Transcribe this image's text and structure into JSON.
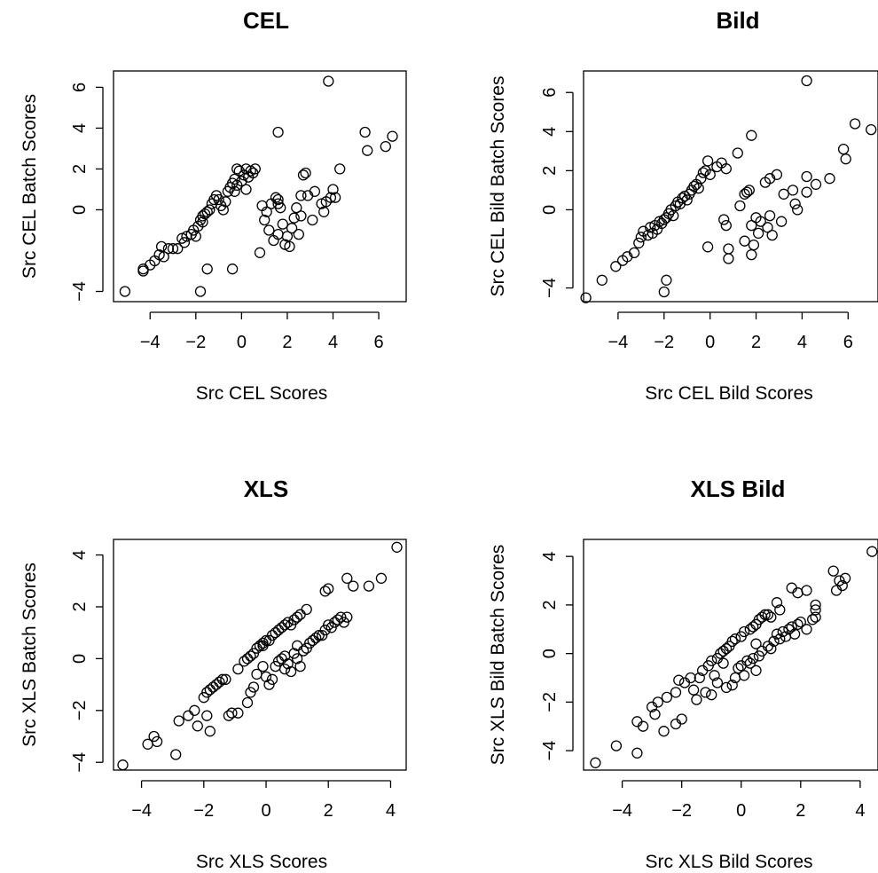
{
  "chart_data": [
    {
      "type": "scatter",
      "title": "CEL",
      "xlabel": "Src CEL Scores",
      "ylabel": "Src CEL Batch Scores",
      "xticks": [
        -4,
        -2,
        0,
        2,
        4,
        6
      ],
      "yticks": [
        -4,
        0,
        2,
        4,
        6
      ],
      "xlim": [
        -5.6,
        7.2
      ],
      "ylim": [
        -4.5,
        6.8
      ],
      "points": [
        [
          -5.1,
          -4.0
        ],
        [
          -4.3,
          -3.0
        ],
        [
          -4.3,
          -2.9
        ],
        [
          -4.0,
          -2.7
        ],
        [
          -3.8,
          -2.5
        ],
        [
          -3.6,
          -2.2
        ],
        [
          -3.5,
          -1.8
        ],
        [
          -3.4,
          -2.3
        ],
        [
          -3.2,
          -1.9
        ],
        [
          -3.0,
          -1.9
        ],
        [
          -2.8,
          -1.9
        ],
        [
          -2.6,
          -1.4
        ],
        [
          -2.5,
          -1.6
        ],
        [
          -2.4,
          -1.3
        ],
        [
          -2.2,
          -1.2
        ],
        [
          -2.1,
          -1.0
        ],
        [
          -2.0,
          -1.3
        ],
        [
          -1.9,
          -0.8
        ],
        [
          -1.8,
          -0.5
        ],
        [
          -1.7,
          -0.6
        ],
        [
          -1.7,
          -0.3
        ],
        [
          -1.6,
          -0.2
        ],
        [
          -1.5,
          -0.1
        ],
        [
          -1.4,
          0.0
        ],
        [
          -1.3,
          0.3
        ],
        [
          -1.2,
          0.5
        ],
        [
          -1.1,
          0.7
        ],
        [
          -1.0,
          0.5
        ],
        [
          -0.9,
          0.2
        ],
        [
          -0.8,
          0.0
        ],
        [
          -0.7,
          0.4
        ],
        [
          -0.6,
          0.9
        ],
        [
          -0.5,
          1.1
        ],
        [
          -0.4,
          1.3
        ],
        [
          -0.3,
          0.9
        ],
        [
          -0.3,
          1.5
        ],
        [
          -0.2,
          1.2
        ],
        [
          -0.1,
          1.9
        ],
        [
          0.0,
          1.4
        ],
        [
          0.1,
          1.7
        ],
        [
          0.2,
          2.0
        ],
        [
          0.3,
          1.6
        ],
        [
          0.4,
          1.9
        ],
        [
          0.5,
          1.8
        ],
        [
          0.6,
          2.0
        ],
        [
          0.2,
          1.0
        ],
        [
          -0.2,
          2.0
        ],
        [
          -1.8,
          -4.0
        ],
        [
          -1.5,
          -2.9
        ],
        [
          -0.4,
          -2.9
        ],
        [
          0.8,
          -2.1
        ],
        [
          0.9,
          0.2
        ],
        [
          1.0,
          -0.5
        ],
        [
          1.1,
          -0.1
        ],
        [
          1.2,
          -1.0
        ],
        [
          1.3,
          0.3
        ],
        [
          1.4,
          -1.5
        ],
        [
          1.5,
          0.6
        ],
        [
          1.6,
          0.5
        ],
        [
          1.6,
          -1.2
        ],
        [
          1.7,
          0.1
        ],
        [
          1.8,
          -0.7
        ],
        [
          1.9,
          -1.7
        ],
        [
          2.0,
          -1.3
        ],
        [
          2.1,
          -1.8
        ],
        [
          2.2,
          -0.9
        ],
        [
          2.3,
          -0.4
        ],
        [
          2.4,
          0.1
        ],
        [
          2.5,
          -1.2
        ],
        [
          2.6,
          -0.3
        ],
        [
          2.7,
          1.7
        ],
        [
          2.8,
          1.8
        ],
        [
          2.9,
          0.7
        ],
        [
          3.1,
          -0.5
        ],
        [
          3.2,
          0.9
        ],
        [
          3.5,
          0.3
        ],
        [
          3.6,
          -0.1
        ],
        [
          3.7,
          0.4
        ],
        [
          3.9,
          0.6
        ],
        [
          4.0,
          1.0
        ],
        [
          4.1,
          0.6
        ],
        [
          4.3,
          2.0
        ],
        [
          1.6,
          3.8
        ],
        [
          3.8,
          6.3
        ],
        [
          5.4,
          3.8
        ],
        [
          5.5,
          2.9
        ],
        [
          6.3,
          3.1
        ],
        [
          6.6,
          3.6
        ],
        [
          1.6,
          0.3
        ],
        [
          2.6,
          0.7
        ]
      ]
    },
    {
      "type": "scatter",
      "title": "Bild",
      "xlabel": "Src CEL Bild Scores",
      "ylabel": "Src CEL Bild Batch Scores",
      "xticks": [
        -4,
        -2,
        0,
        2,
        4,
        6
      ],
      "yticks": [
        -4,
        0,
        2,
        4,
        6
      ],
      "xlim": [
        -5.5,
        7.3
      ],
      "ylim": [
        -4.7,
        7.1
      ],
      "points": [
        [
          -5.4,
          -4.5
        ],
        [
          -4.7,
          -3.6
        ],
        [
          -4.1,
          -2.9
        ],
        [
          -3.8,
          -2.6
        ],
        [
          -3.6,
          -2.4
        ],
        [
          -3.3,
          -2.2
        ],
        [
          -3.1,
          -1.7
        ],
        [
          -3.0,
          -1.4
        ],
        [
          -2.9,
          -1.1
        ],
        [
          -2.7,
          -1.3
        ],
        [
          -2.6,
          -0.9
        ],
        [
          -2.5,
          -1.2
        ],
        [
          -2.4,
          -0.8
        ],
        [
          -2.3,
          -1.0
        ],
        [
          -2.2,
          -0.6
        ],
        [
          -2.1,
          -0.7
        ],
        [
          -2.0,
          -0.5
        ],
        [
          -1.9,
          -0.4
        ],
        [
          -1.8,
          -0.2
        ],
        [
          -1.7,
          0.0
        ],
        [
          -1.6,
          -0.3
        ],
        [
          -1.5,
          0.2
        ],
        [
          -1.4,
          0.4
        ],
        [
          -1.3,
          0.3
        ],
        [
          -1.2,
          0.6
        ],
        [
          -1.1,
          0.7
        ],
        [
          -1.0,
          0.5
        ],
        [
          -0.9,
          0.8
        ],
        [
          -0.8,
          1.0
        ],
        [
          -0.7,
          1.2
        ],
        [
          -0.6,
          1.3
        ],
        [
          -0.5,
          1.1
        ],
        [
          -0.4,
          1.6
        ],
        [
          -0.3,
          1.9
        ],
        [
          -0.2,
          2.0
        ],
        [
          -0.1,
          2.5
        ],
        [
          0.0,
          1.8
        ],
        [
          0.3,
          2.2
        ],
        [
          0.5,
          2.4
        ],
        [
          0.7,
          2.1
        ],
        [
          -0.1,
          -1.9
        ],
        [
          -2.0,
          -4.2
        ],
        [
          -1.9,
          -3.6
        ],
        [
          0.6,
          -0.5
        ],
        [
          0.7,
          -0.8
        ],
        [
          0.8,
          -2.0
        ],
        [
          0.8,
          -2.5
        ],
        [
          1.3,
          0.2
        ],
        [
          1.5,
          0.8
        ],
        [
          1.5,
          -1.6
        ],
        [
          1.6,
          0.9
        ],
        [
          1.7,
          1.0
        ],
        [
          1.8,
          -0.8
        ],
        [
          1.8,
          -2.3
        ],
        [
          1.9,
          -1.8
        ],
        [
          2.0,
          -0.4
        ],
        [
          2.1,
          -1.2
        ],
        [
          2.2,
          -0.6
        ],
        [
          2.4,
          1.4
        ],
        [
          2.5,
          -0.9
        ],
        [
          2.6,
          -0.3
        ],
        [
          2.7,
          -1.3
        ],
        [
          2.9,
          1.8
        ],
        [
          3.1,
          -0.6
        ],
        [
          3.2,
          0.8
        ],
        [
          3.6,
          1.0
        ],
        [
          3.7,
          0.3
        ],
        [
          3.8,
          0.0
        ],
        [
          4.2,
          1.7
        ],
        [
          4.2,
          0.9
        ],
        [
          4.6,
          1.3
        ],
        [
          5.2,
          1.6
        ],
        [
          5.8,
          3.1
        ],
        [
          5.9,
          2.6
        ],
        [
          6.3,
          4.4
        ],
        [
          7.0,
          4.1
        ],
        [
          4.2,
          6.6
        ],
        [
          1.8,
          3.8
        ],
        [
          1.2,
          2.9
        ],
        [
          2.6,
          1.6
        ]
      ]
    },
    {
      "type": "scatter",
      "title": "XLS",
      "xlabel": "Src XLS Scores",
      "ylabel": "Src XLS Batch Scores",
      "xticks": [
        -4,
        -2,
        0,
        2,
        4
      ],
      "yticks": [
        -4,
        -2,
        0,
        2,
        4
      ],
      "xlim": [
        -4.9,
        4.5
      ],
      "ylim": [
        -4.3,
        4.6
      ],
      "points": [
        [
          -4.6,
          -4.1
        ],
        [
          -3.8,
          -3.3
        ],
        [
          -3.6,
          -3.0
        ],
        [
          -3.5,
          -3.2
        ],
        [
          -2.9,
          -3.7
        ],
        [
          -2.8,
          -2.4
        ],
        [
          -2.5,
          -2.2
        ],
        [
          -2.3,
          -2.0
        ],
        [
          -2.2,
          -2.6
        ],
        [
          -1.9,
          -2.2
        ],
        [
          -2.0,
          -1.5
        ],
        [
          -1.9,
          -1.3
        ],
        [
          -1.8,
          -1.2
        ],
        [
          -1.7,
          -1.1
        ],
        [
          -1.6,
          -1.0
        ],
        [
          -1.5,
          -0.9
        ],
        [
          -1.4,
          -0.8
        ],
        [
          -1.3,
          -0.8
        ],
        [
          -0.9,
          -0.4
        ],
        [
          -0.7,
          -0.1
        ],
        [
          -0.6,
          0.0
        ],
        [
          -0.5,
          0.1
        ],
        [
          -0.4,
          0.2
        ],
        [
          -0.3,
          0.4
        ],
        [
          -0.2,
          0.5
        ],
        [
          -0.1,
          0.6
        ],
        [
          0.0,
          0.7
        ],
        [
          0.1,
          0.7
        ],
        [
          0.2,
          0.9
        ],
        [
          0.3,
          1.0
        ],
        [
          0.4,
          1.1
        ],
        [
          0.5,
          1.2
        ],
        [
          0.6,
          1.3
        ],
        [
          0.7,
          1.4
        ],
        [
          0.8,
          1.3
        ],
        [
          0.9,
          1.5
        ],
        [
          1.0,
          1.6
        ],
        [
          1.1,
          1.7
        ],
        [
          1.3,
          1.9
        ],
        [
          1.0,
          0.5
        ],
        [
          -1.8,
          -2.8
        ],
        [
          -1.2,
          -2.2
        ],
        [
          -1.1,
          -2.1
        ],
        [
          -0.9,
          -2.1
        ],
        [
          -0.6,
          -1.7
        ],
        [
          -0.5,
          -1.3
        ],
        [
          -0.4,
          -1.1
        ],
        [
          -0.3,
          -0.6
        ],
        [
          -0.1,
          -0.3
        ],
        [
          0.0,
          -0.7
        ],
        [
          0.1,
          -1.0
        ],
        [
          0.2,
          -0.8
        ],
        [
          0.3,
          -0.3
        ],
        [
          0.4,
          -0.1
        ],
        [
          0.5,
          0.0
        ],
        [
          0.6,
          -0.4
        ],
        [
          0.7,
          -0.2
        ],
        [
          0.8,
          -0.5
        ],
        [
          0.9,
          0.2
        ],
        [
          1.0,
          0.0
        ],
        [
          1.1,
          -0.3
        ],
        [
          1.2,
          0.3
        ],
        [
          1.3,
          0.4
        ],
        [
          1.4,
          0.6
        ],
        [
          1.5,
          0.7
        ],
        [
          1.6,
          0.8
        ],
        [
          1.7,
          0.9
        ],
        [
          1.8,
          0.9
        ],
        [
          1.9,
          1.1
        ],
        [
          2.0,
          1.3
        ],
        [
          2.1,
          1.2
        ],
        [
          2.2,
          1.4
        ],
        [
          2.3,
          1.5
        ],
        [
          2.4,
          1.6
        ],
        [
          2.5,
          1.4
        ],
        [
          2.6,
          1.6
        ],
        [
          1.9,
          2.6
        ],
        [
          2.0,
          2.7
        ],
        [
          2.6,
          3.1
        ],
        [
          2.8,
          2.8
        ],
        [
          3.3,
          2.8
        ],
        [
          3.7,
          3.1
        ],
        [
          4.2,
          4.3
        ],
        [
          -0.1,
          0.5
        ],
        [
          0.6,
          0.1
        ]
      ]
    },
    {
      "type": "scatter",
      "title": "XLS Bild",
      "xlabel": "Src XLS Bild Scores",
      "ylabel": "Src XLS Bild Batch Scores",
      "xticks": [
        -4,
        -2,
        0,
        2,
        4
      ],
      "yticks": [
        -4,
        -2,
        0,
        2,
        4
      ],
      "xlim": [
        -5.3,
        4.6
      ],
      "ylim": [
        -4.8,
        4.7
      ],
      "points": [
        [
          -4.9,
          -4.5
        ],
        [
          -4.2,
          -3.8
        ],
        [
          -3.5,
          -4.1
        ],
        [
          -3.5,
          -2.8
        ],
        [
          -3.3,
          -3.0
        ],
        [
          -3.0,
          -2.2
        ],
        [
          -2.9,
          -2.5
        ],
        [
          -2.8,
          -2.0
        ],
        [
          -2.6,
          -3.2
        ],
        [
          -2.5,
          -1.8
        ],
        [
          -2.2,
          -2.9
        ],
        [
          -2.0,
          -2.7
        ],
        [
          -2.2,
          -1.6
        ],
        [
          -2.1,
          -1.1
        ],
        [
          -1.9,
          -1.2
        ],
        [
          -1.7,
          -1.0
        ],
        [
          -1.6,
          -1.5
        ],
        [
          -1.4,
          -1.0
        ],
        [
          -1.3,
          -0.7
        ],
        [
          -1.1,
          -0.5
        ],
        [
          -1.0,
          -0.3
        ],
        [
          -0.8,
          -0.2
        ],
        [
          -0.7,
          0.0
        ],
        [
          -0.6,
          0.1
        ],
        [
          -0.5,
          0.2
        ],
        [
          -0.4,
          0.3
        ],
        [
          -0.3,
          0.5
        ],
        [
          -0.2,
          0.6
        ],
        [
          0.0,
          0.7
        ],
        [
          0.1,
          0.9
        ],
        [
          0.3,
          1.0
        ],
        [
          0.4,
          1.1
        ],
        [
          0.5,
          1.2
        ],
        [
          0.6,
          1.4
        ],
        [
          0.7,
          1.5
        ],
        [
          0.8,
          1.6
        ],
        [
          0.9,
          1.6
        ],
        [
          1.0,
          1.5
        ],
        [
          1.2,
          2.1
        ],
        [
          1.3,
          1.8
        ],
        [
          -1.5,
          -1.9
        ],
        [
          -1.2,
          -1.6
        ],
        [
          -1.0,
          -1.7
        ],
        [
          -0.8,
          -1.2
        ],
        [
          -0.5,
          -1.4
        ],
        [
          -0.3,
          -1.3
        ],
        [
          -0.2,
          -1.0
        ],
        [
          -0.1,
          -0.6
        ],
        [
          0.0,
          -0.5
        ],
        [
          0.1,
          -0.9
        ],
        [
          0.2,
          -0.3
        ],
        [
          0.3,
          -0.4
        ],
        [
          0.4,
          -0.2
        ],
        [
          0.5,
          -0.7
        ],
        [
          0.6,
          -0.1
        ],
        [
          0.7,
          0.1
        ],
        [
          0.9,
          0.3
        ],
        [
          1.1,
          0.5
        ],
        [
          1.2,
          0.8
        ],
        [
          1.3,
          0.6
        ],
        [
          1.4,
          0.9
        ],
        [
          1.5,
          0.7
        ],
        [
          1.6,
          1.0
        ],
        [
          1.7,
          1.1
        ],
        [
          1.8,
          0.8
        ],
        [
          1.9,
          1.2
        ],
        [
          2.0,
          1.3
        ],
        [
          2.2,
          1.0
        ],
        [
          2.4,
          1.4
        ],
        [
          2.5,
          1.5
        ],
        [
          1.7,
          2.7
        ],
        [
          1.9,
          2.5
        ],
        [
          2.2,
          2.6
        ],
        [
          2.5,
          2.0
        ],
        [
          2.5,
          1.8
        ],
        [
          3.1,
          3.4
        ],
        [
          3.2,
          2.6
        ],
        [
          3.3,
          3.0
        ],
        [
          3.4,
          2.8
        ],
        [
          3.5,
          3.1
        ],
        [
          4.4,
          4.2
        ],
        [
          -0.6,
          -0.4
        ],
        [
          0.5,
          0.4
        ],
        [
          1.0,
          0.2
        ],
        [
          -0.9,
          -0.9
        ]
      ]
    }
  ]
}
